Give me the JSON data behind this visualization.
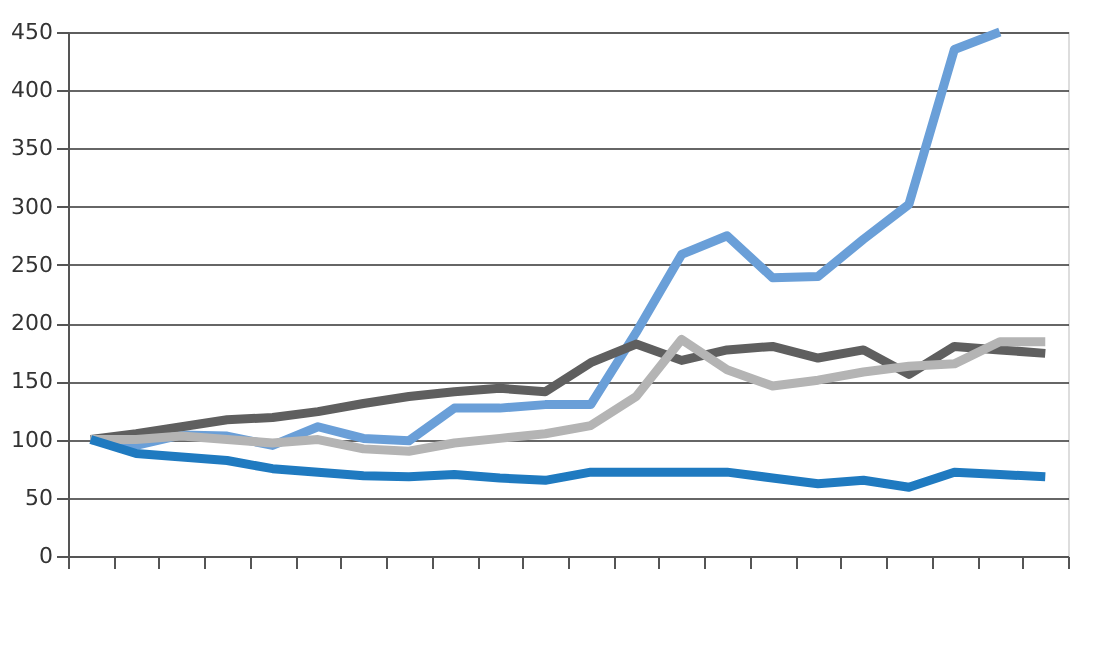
{
  "chart_data": {
    "type": "line",
    "categories": [
      null,
      null,
      null,
      null,
      null,
      null,
      null,
      null,
      null,
      null,
      null,
      null,
      null,
      null,
      null,
      null,
      null,
      null,
      null,
      null,
      null,
      null
    ],
    "series": [
      {
        "color": "#6a9fd8",
        "values": [
          100,
          95,
          104,
          103,
          95,
          111,
          101,
          99,
          127,
          127,
          130,
          130,
          192,
          259,
          275,
          239,
          240,
          272,
          302,
          435,
          450,
          null
        ]
      },
      {
        "color": "#5f5f5f",
        "values": [
          100,
          105,
          111,
          117,
          119,
          124,
          131,
          137,
          141,
          144,
          141,
          166,
          182,
          168,
          177,
          180,
          170,
          177,
          156,
          180,
          177,
          174
        ]
      },
      {
        "color": "#b4b4b4",
        "values": [
          100,
          100,
          103,
          100,
          97,
          100,
          92,
          90,
          97,
          101,
          105,
          112,
          137,
          186,
          160,
          146,
          151,
          158,
          163,
          165,
          184,
          184
        ]
      },
      {
        "color": "#1f7ac0",
        "values": [
          100,
          88,
          85,
          82,
          75,
          72,
          69,
          68,
          70,
          67,
          65,
          72,
          72,
          72,
          72,
          67,
          62,
          65,
          59,
          72,
          70,
          68
        ]
      }
    ],
    "ylim": [
      0,
      450
    ],
    "yticks": [
      0,
      50,
      100,
      150,
      200,
      250,
      300,
      350,
      400,
      450
    ],
    "grid": "y",
    "tick_labels": "y",
    "legend": false,
    "marker": "none",
    "line_style": "solid"
  }
}
